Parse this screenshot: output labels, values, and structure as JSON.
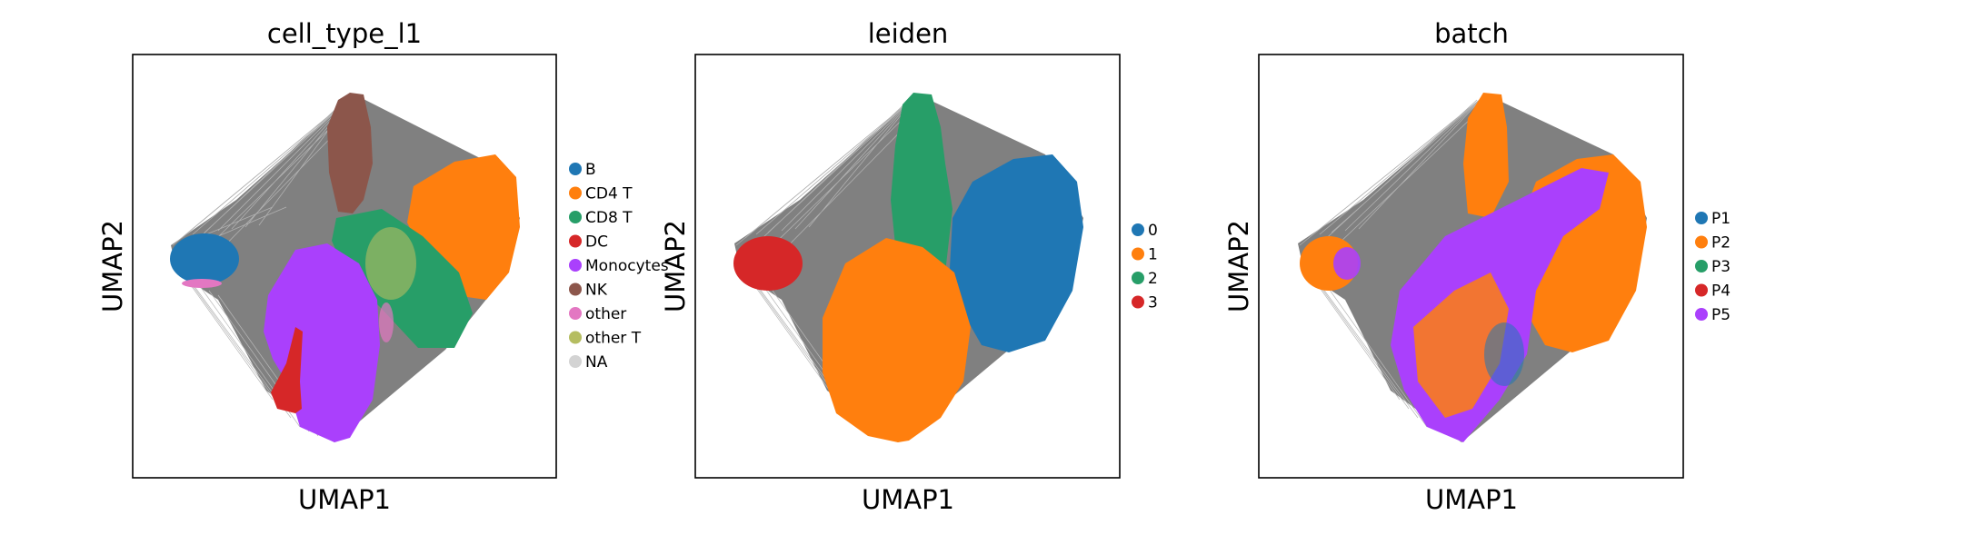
{
  "chart_data": [
    {
      "type": "scatter",
      "title": "cell_type_l1",
      "xlabel": "UMAP1",
      "ylabel": "UMAP2",
      "grid": false,
      "legend_position": "right",
      "series": [
        {
          "name": "B",
          "color": "#1f77b4"
        },
        {
          "name": "CD4 T",
          "color": "#ff7f0e"
        },
        {
          "name": "CD8 T",
          "color": "#279e68"
        },
        {
          "name": "DC",
          "color": "#d62728"
        },
        {
          "name": "Monocytes",
          "color": "#aa40fc"
        },
        {
          "name": "NK",
          "color": "#8c564b"
        },
        {
          "name": "other",
          "color": "#e377c2"
        },
        {
          "name": "other T",
          "color": "#b5bd61"
        },
        {
          "name": "NA",
          "color": "#d3d3d3"
        }
      ]
    },
    {
      "type": "scatter",
      "title": "leiden",
      "xlabel": "UMAP1",
      "ylabel": "UMAP2",
      "grid": false,
      "legend_position": "right",
      "series": [
        {
          "name": "0",
          "color": "#1f77b4"
        },
        {
          "name": "1",
          "color": "#ff7f0e"
        },
        {
          "name": "2",
          "color": "#279e68"
        },
        {
          "name": "3",
          "color": "#d62728"
        }
      ]
    },
    {
      "type": "scatter",
      "title": "batch",
      "xlabel": "UMAP1",
      "ylabel": "UMAP2",
      "grid": false,
      "legend_position": "right",
      "series": [
        {
          "name": "P1",
          "color": "#1f77b4"
        },
        {
          "name": "P2",
          "color": "#ff7f0e"
        },
        {
          "name": "P3",
          "color": "#279e68"
        },
        {
          "name": "P4",
          "color": "#d62728"
        },
        {
          "name": "P5",
          "color": "#aa40fc"
        }
      ]
    }
  ]
}
